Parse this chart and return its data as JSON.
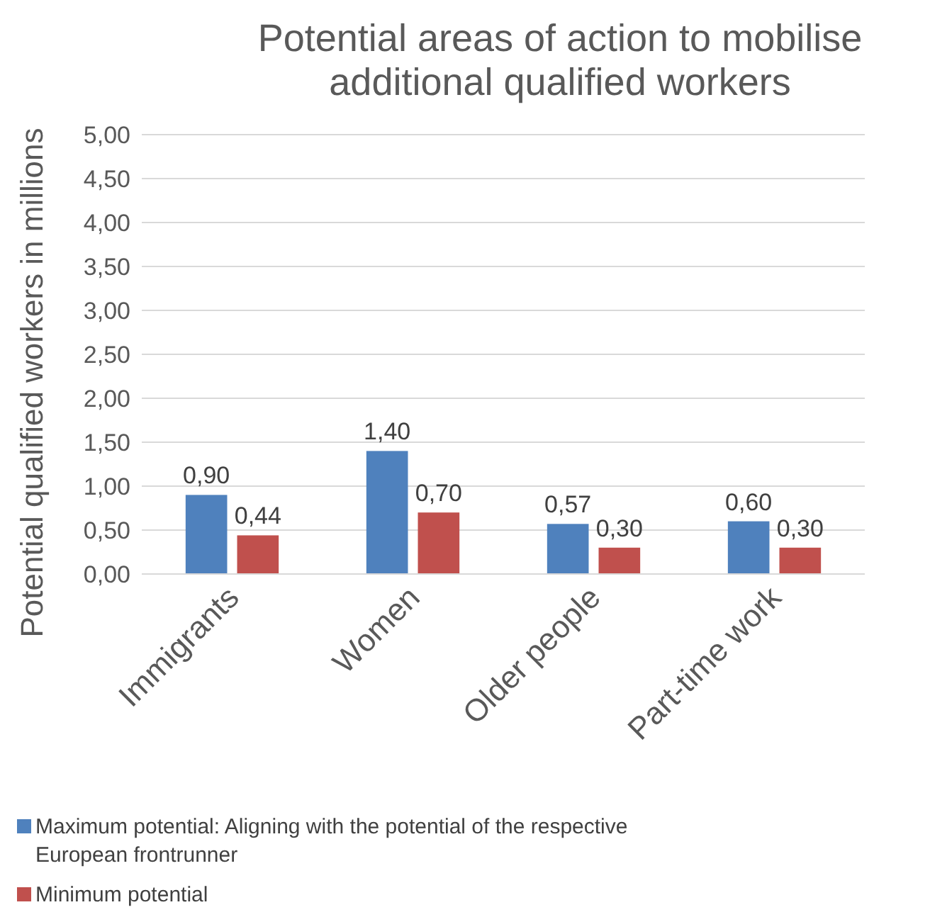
{
  "chart_data": {
    "type": "bar",
    "title": "Potential areas of action to mobilise additional qualified workers",
    "ylabel": "Potential qualified workers in millions",
    "categories": [
      "Immigrants",
      "Women",
      "Older people",
      "Part-time work"
    ],
    "series": [
      {
        "name": "Maximum potential: Aligning with the potential of the respective European frontrunner",
        "color": "#4f81bd",
        "values": [
          0.9,
          1.4,
          0.57,
          0.6
        ],
        "value_labels": [
          "0,90",
          "1,40",
          "0,57",
          "0,60"
        ]
      },
      {
        "name": "Minimum potential",
        "color": "#c0504d",
        "values": [
          0.44,
          0.7,
          0.3,
          0.3
        ],
        "value_labels": [
          "0,44",
          "0,70",
          "0,30",
          "0,30"
        ]
      }
    ],
    "ylim": [
      0,
      5
    ],
    "yticks": [
      {
        "value": 0,
        "label": "0,00"
      },
      {
        "value": 0.5,
        "label": "0,50"
      },
      {
        "value": 1,
        "label": "1,00"
      },
      {
        "value": 1.5,
        "label": "1,50"
      },
      {
        "value": 2,
        "label": "2,00"
      },
      {
        "value": 2.5,
        "label": "2,50"
      },
      {
        "value": 3,
        "label": "3,00"
      },
      {
        "value": 3.5,
        "label": "3,50"
      },
      {
        "value": 4,
        "label": "4,00"
      },
      {
        "value": 4.5,
        "label": "4,50"
      },
      {
        "value": 5,
        "label": "5,00"
      }
    ],
    "grid": "y",
    "legend": "bottom"
  }
}
